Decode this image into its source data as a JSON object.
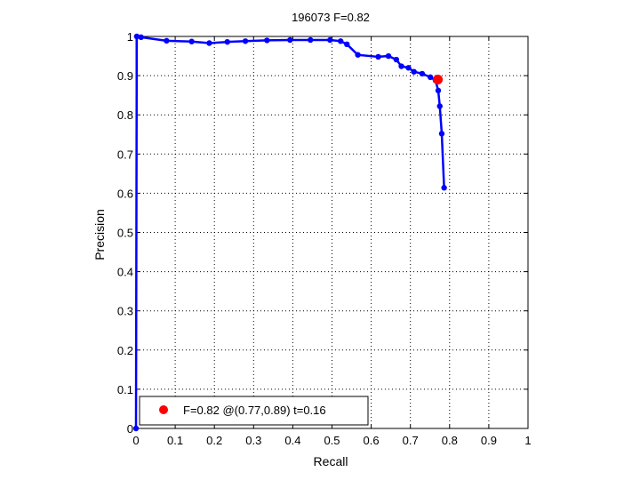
{
  "chart_data": {
    "type": "line",
    "title": "196073 F=0.82",
    "xlabel": "Recall",
    "ylabel": "Precision",
    "xlim": [
      0,
      1
    ],
    "ylim": [
      0,
      1
    ],
    "xticks": [
      "0",
      "0.1",
      "0.2",
      "0.3",
      "0.4",
      "0.5",
      "0.6",
      "0.7",
      "0.8",
      "0.9",
      "1"
    ],
    "yticks": [
      "0",
      "0.1",
      "0.2",
      "0.3",
      "0.4",
      "0.5",
      "0.6",
      "0.7",
      "0.8",
      "0.9",
      "1"
    ],
    "grid": true,
    "legend_position": "bottom-left",
    "series": [
      {
        "color": "#0000ff",
        "x": [
          0.0,
          0.002,
          0.013,
          0.078,
          0.142,
          0.187,
          0.233,
          0.279,
          0.334,
          0.393,
          0.445,
          0.495,
          0.522,
          0.538,
          0.566,
          0.618,
          0.644,
          0.664,
          0.677,
          0.695,
          0.709,
          0.73,
          0.751,
          0.764,
          0.771,
          0.775,
          0.78,
          0.786
        ],
        "y": [
          0.0,
          1.0,
          0.998,
          0.989,
          0.987,
          0.983,
          0.986,
          0.988,
          0.99,
          0.991,
          0.991,
          0.991,
          0.988,
          0.98,
          0.953,
          0.948,
          0.95,
          0.941,
          0.924,
          0.92,
          0.91,
          0.905,
          0.896,
          0.888,
          0.862,
          0.822,
          0.752,
          0.614
        ]
      }
    ],
    "highlight": {
      "x": 0.77,
      "y": 0.89,
      "color": "#ff0000"
    },
    "legend": {
      "label": "F=0.82 @(0.77,0.89) t=0.16"
    }
  }
}
